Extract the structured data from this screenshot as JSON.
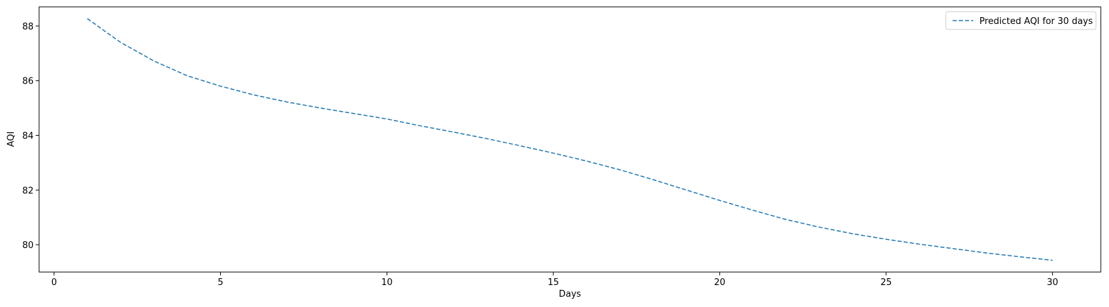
{
  "chart_data": {
    "type": "line",
    "title": "",
    "xlabel": "Days",
    "ylabel": "AQI",
    "xlim": [
      -0.45,
      31.45
    ],
    "ylim": [
      79.0,
      88.7
    ],
    "xticks": [
      0,
      5,
      10,
      15,
      20,
      25,
      30
    ],
    "yticks": [
      80,
      82,
      84,
      86,
      88
    ],
    "grid": false,
    "legend_position": "top-right",
    "colors": {
      "series": "#1f77b4",
      "axes": "#000000"
    },
    "series": [
      {
        "name": "Predicted AQI for 30 days",
        "line_style": "dashed",
        "x": [
          1,
          2,
          3,
          4,
          5,
          6,
          7,
          8,
          9,
          10,
          11,
          12,
          13,
          14,
          15,
          16,
          17,
          18,
          19,
          20,
          21,
          22,
          23,
          24,
          25,
          26,
          27,
          28,
          29,
          30
        ],
        "values": [
          88.27,
          87.4,
          86.72,
          86.18,
          85.8,
          85.48,
          85.22,
          85.0,
          84.8,
          84.6,
          84.35,
          84.12,
          83.88,
          83.62,
          83.35,
          83.06,
          82.74,
          82.38,
          82.0,
          81.62,
          81.26,
          80.92,
          80.64,
          80.4,
          80.2,
          80.02,
          79.86,
          79.7,
          79.56,
          79.43
        ]
      }
    ]
  }
}
